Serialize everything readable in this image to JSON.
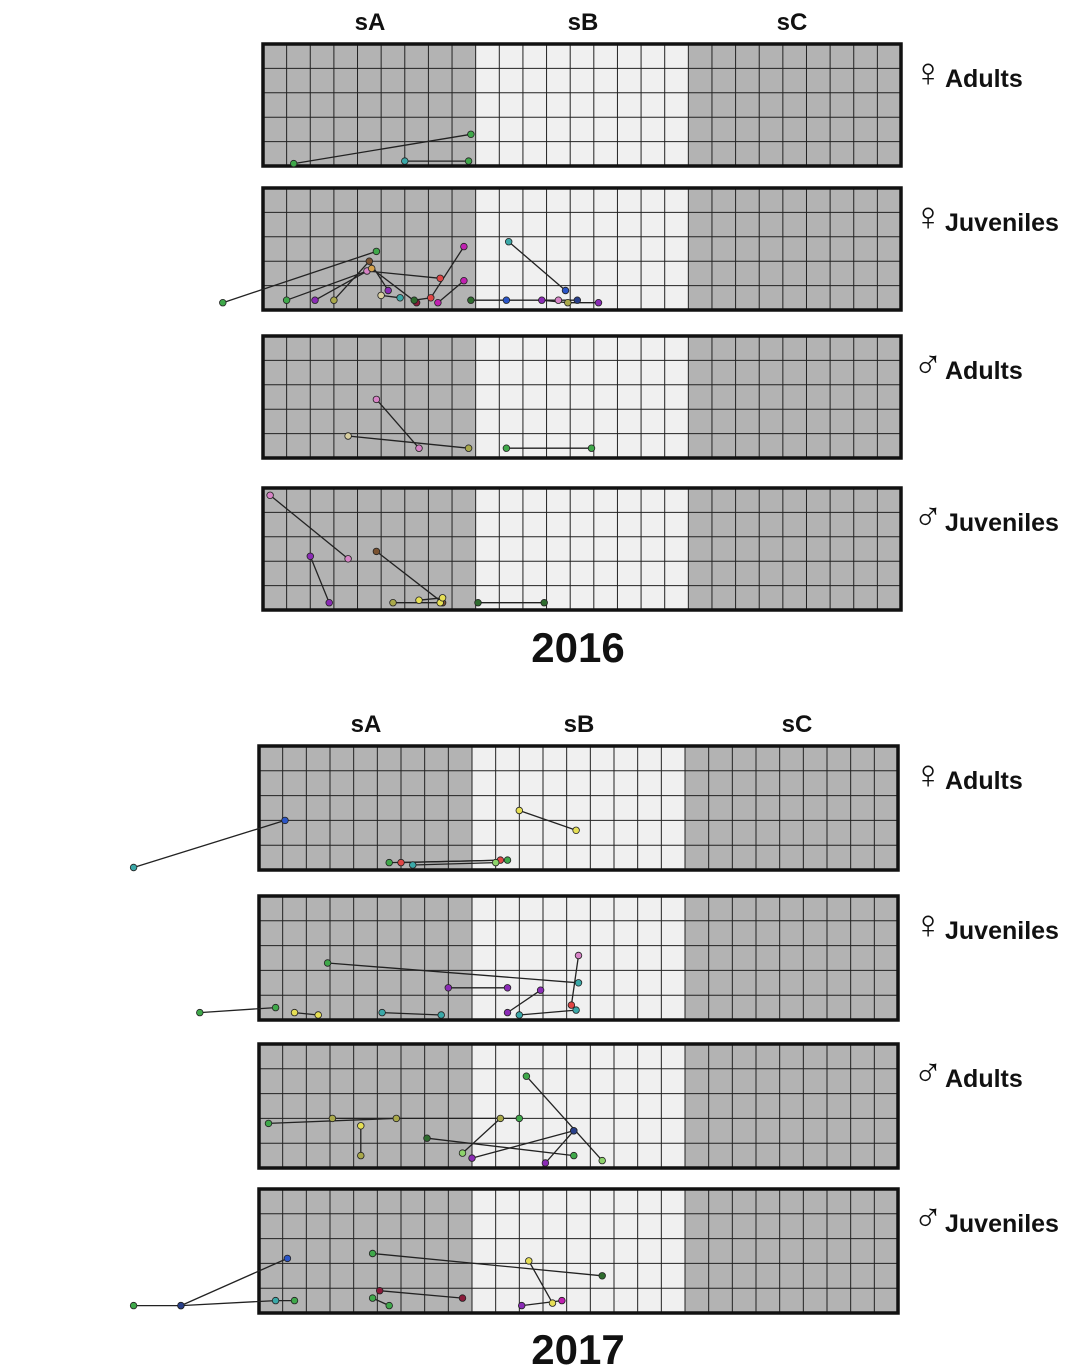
{
  "sectors": [
    "sA",
    "sB",
    "sC"
  ],
  "colors": {
    "dark_cell": "#b3b3b3",
    "light_cell": "#f0f0f0",
    "grid_line": "#222222",
    "frame": "#111111",
    "track": "#222222"
  },
  "point_palette": {
    "g": "#3fa84a",
    "dg": "#2e6b2e",
    "lg": "#8dd36b",
    "pk": "#d783c6",
    "mg": "#c020b0",
    "pu": "#8a2bb5",
    "dr": "#8b1a3a",
    "br": "#7a5230",
    "yl": "#e6df55",
    "ol": "#a9a84a",
    "tl": "#3aa8a8",
    "bl": "#2a55c8",
    "nv": "#283f8a",
    "rd": "#e04545",
    "or": "#d6a24a",
    "be": "#d9cfa0"
  },
  "panels": [
    {
      "year": "2016",
      "rows": [
        {
          "sex_symbol": "♀",
          "label": "Adults",
          "tracks": [
            [
              [
                1.3,
                0.1,
                "g"
              ],
              [
                8.8,
                1.3,
                "g"
              ]
            ],
            [
              [
                6.0,
                0.2,
                "tl"
              ],
              [
                8.7,
                0.2,
                "g"
              ]
            ]
          ]
        },
        {
          "sex_symbol": "♀",
          "label": "Juveniles",
          "tracks": [
            [
              [
                -1.7,
                0.3,
                "g"
              ],
              [
                4.8,
                2.4,
                "g"
              ]
            ],
            [
              [
                1.0,
                0.4,
                "g"
              ],
              [
                4.4,
                1.6,
                "pk"
              ],
              [
                7.5,
                1.3,
                "rd"
              ]
            ],
            [
              [
                2.2,
                0.4,
                "pu"
              ],
              [
                4.6,
                1.7,
                "or"
              ],
              [
                6.5,
                0.3,
                "dr"
              ]
            ],
            [
              [
                3.0,
                0.4,
                "ol"
              ],
              [
                4.5,
                2.0,
                "br"
              ],
              [
                5.3,
                0.8,
                "pu"
              ]
            ],
            [
              [
                6.4,
                0.4,
                "dg"
              ],
              [
                7.1,
                0.5,
                "rd"
              ],
              [
                8.5,
                2.6,
                "mg"
              ]
            ],
            [
              [
                7.4,
                0.3,
                "mg"
              ],
              [
                8.5,
                1.2,
                "mg"
              ]
            ],
            [
              [
                5.0,
                0.6,
                "be"
              ],
              [
                5.8,
                0.5,
                "tl"
              ]
            ],
            [
              [
                10.4,
                2.8,
                "tl"
              ],
              [
                12.8,
                0.8,
                "bl"
              ]
            ],
            [
              [
                8.8,
                0.4,
                "dg"
              ],
              [
                10.3,
                0.4,
                "bl"
              ],
              [
                12.5,
                0.4,
                "pk"
              ],
              [
                13.3,
                0.4,
                "nv"
              ]
            ],
            [
              [
                11.8,
                0.4,
                "pu"
              ],
              [
                12.9,
                0.3,
                "ol"
              ],
              [
                14.2,
                0.3,
                "pu"
              ]
            ]
          ]
        },
        {
          "sex_symbol": "♂",
          "label": "Adults",
          "tracks": [
            [
              [
                4.8,
                2.4,
                "pk"
              ],
              [
                6.6,
                0.4,
                "pk"
              ]
            ],
            [
              [
                3.6,
                0.9,
                "be"
              ],
              [
                8.7,
                0.4,
                "ol"
              ]
            ],
            [
              [
                10.3,
                0.4,
                "g"
              ],
              [
                13.9,
                0.4,
                "g"
              ]
            ]
          ]
        },
        {
          "sex_symbol": "♂",
          "label": "Juveniles",
          "tracks": [
            [
              [
                0.3,
                4.7,
                "pk"
              ],
              [
                3.6,
                2.1,
                "pk"
              ]
            ],
            [
              [
                2.0,
                2.2,
                "pu"
              ],
              [
                2.8,
                0.3,
                "pu"
              ]
            ],
            [
              [
                4.8,
                2.4,
                "br"
              ],
              [
                7.6,
                0.3,
                "br"
              ]
            ],
            [
              [
                5.5,
                0.3,
                "ol"
              ],
              [
                7.5,
                0.3,
                "yl"
              ]
            ],
            [
              [
                6.6,
                0.4,
                "yl"
              ],
              [
                7.6,
                0.5,
                "yl"
              ]
            ],
            [
              [
                9.1,
                0.3,
                "dg"
              ],
              [
                11.9,
                0.3,
                "dg"
              ]
            ]
          ]
        }
      ]
    },
    {
      "year": "2017",
      "rows": [
        {
          "sex_symbol": "♀",
          "label": "Adults",
          "tracks": [
            [
              [
                -5.3,
                0.1,
                "tl"
              ],
              [
                1.1,
                2.0,
                "bl"
              ]
            ],
            [
              [
                5.5,
                0.3,
                "g"
              ],
              [
                10.5,
                0.4,
                "g"
              ]
            ],
            [
              [
                6.0,
                0.3,
                "rd"
              ],
              [
                10.2,
                0.4,
                "rd"
              ]
            ],
            [
              [
                6.5,
                0.2,
                "tl"
              ],
              [
                10.0,
                0.3,
                "lg"
              ]
            ],
            [
              [
                11.0,
                2.4,
                "yl"
              ],
              [
                13.4,
                1.6,
                "yl"
              ]
            ]
          ]
        },
        {
          "sex_symbol": "♀",
          "label": "Juveniles",
          "tracks": [
            [
              [
                -2.5,
                0.3,
                "g"
              ],
              [
                0.7,
                0.5,
                "g"
              ]
            ],
            [
              [
                1.5,
                0.3,
                "yl"
              ],
              [
                2.5,
                0.2,
                "yl"
              ]
            ],
            [
              [
                2.9,
                2.3,
                "g"
              ],
              [
                13.5,
                1.5,
                "tl"
              ]
            ],
            [
              [
                8.0,
                1.3,
                "pu"
              ],
              [
                10.5,
                1.3,
                "pu"
              ]
            ],
            [
              [
                5.2,
                0.3,
                "tl"
              ],
              [
                7.7,
                0.2,
                "tl"
              ]
            ],
            [
              [
                10.5,
                0.3,
                "pu"
              ],
              [
                11.9,
                1.2,
                "pu"
              ]
            ],
            [
              [
                11.0,
                0.2,
                "tl"
              ],
              [
                13.4,
                0.4,
                "tl"
              ]
            ],
            [
              [
                13.5,
                2.6,
                "pk"
              ],
              [
                13.2,
                0.6,
                "rd"
              ]
            ]
          ]
        },
        {
          "sex_symbol": "♂",
          "label": "Adults",
          "tracks": [
            [
              [
                11.3,
                3.7,
                "g"
              ],
              [
                14.5,
                0.3,
                "lg"
              ]
            ],
            [
              [
                0.4,
                1.8,
                "g"
              ],
              [
                5.8,
                2.0,
                "ol"
              ]
            ],
            [
              [
                3.1,
                2.0,
                "ol"
              ],
              [
                11.0,
                2.0,
                "g"
              ]
            ],
            [
              [
                4.3,
                1.7,
                "yl"
              ],
              [
                4.3,
                0.5,
                "ol"
              ]
            ],
            [
              [
                7.1,
                1.2,
                "dg"
              ],
              [
                13.3,
                0.5,
                "g"
              ]
            ],
            [
              [
                8.6,
                0.6,
                "lg"
              ],
              [
                10.2,
                2.0,
                "ol"
              ]
            ],
            [
              [
                9.0,
                0.4,
                "pu"
              ],
              [
                13.3,
                1.5,
                "pu"
              ]
            ],
            [
              [
                12.1,
                0.2,
                "pu"
              ],
              [
                13.3,
                1.5,
                "nv"
              ]
            ]
          ]
        },
        {
          "sex_symbol": "♂",
          "label": "Juveniles",
          "tracks": [
            [
              [
                -5.3,
                0.3,
                "g"
              ],
              [
                -3.3,
                0.3,
                "nv"
              ],
              [
                0.7,
                0.5,
                "tl"
              ],
              [
                1.5,
                0.5,
                "g"
              ]
            ],
            [
              [
                -3.3,
                0.3,
                "nv"
              ],
              [
                1.2,
                2.2,
                "bl"
              ]
            ],
            [
              [
                4.8,
                2.4,
                "g"
              ],
              [
                14.5,
                1.5,
                "dg"
              ]
            ],
            [
              [
                5.1,
                0.9,
                "dr"
              ],
              [
                8.6,
                0.6,
                "dr"
              ]
            ],
            [
              [
                4.8,
                0.6,
                "g"
              ],
              [
                5.5,
                0.3,
                "g"
              ]
            ],
            [
              [
                11.4,
                2.1,
                "yl"
              ],
              [
                12.4,
                0.4,
                "yl"
              ]
            ],
            [
              [
                11.1,
                0.3,
                "pu"
              ],
              [
                12.8,
                0.5,
                "mg"
              ]
            ]
          ]
        }
      ]
    }
  ]
}
